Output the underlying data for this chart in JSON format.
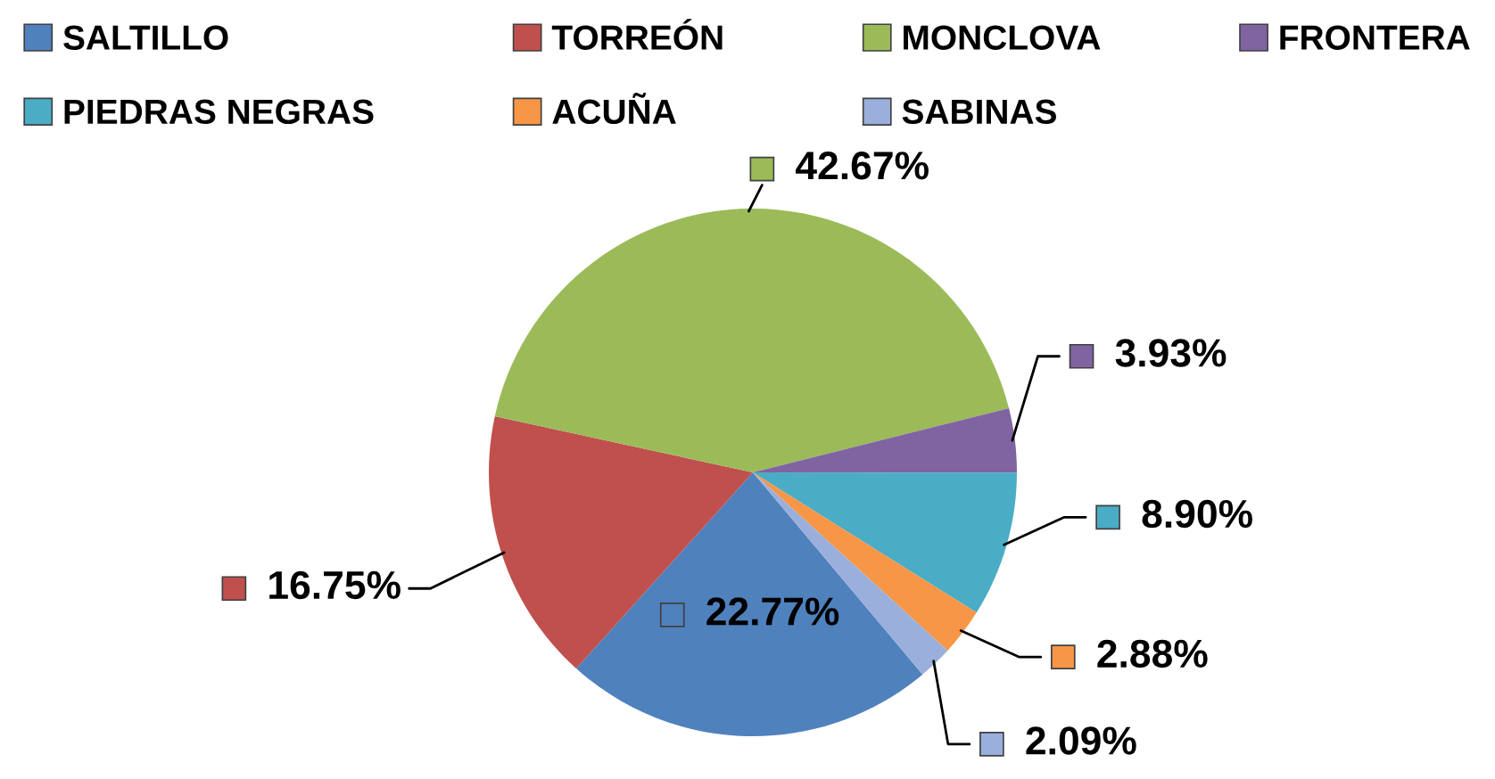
{
  "chart_data": {
    "type": "pie",
    "categories": [
      "SALTILLO",
      "TORREÓN",
      "MONCLOVA",
      "FRONTERA",
      "PIEDRAS NEGRAS",
      "ACUÑA",
      "SABINAS"
    ],
    "values": [
      22.77,
      16.75,
      42.67,
      3.93,
      8.9,
      2.88,
      2.09
    ],
    "colors": [
      "#4f81bd",
      "#c0504d",
      "#9bbb59",
      "#8064a2",
      "#4bacc6",
      "#f79646",
      "#9aafdb"
    ],
    "value_labels": [
      "22.77%",
      "16.75%",
      "42.67%",
      "3.93%",
      "8.90%",
      "2.88%",
      "2.09%"
    ],
    "legend": "top"
  }
}
